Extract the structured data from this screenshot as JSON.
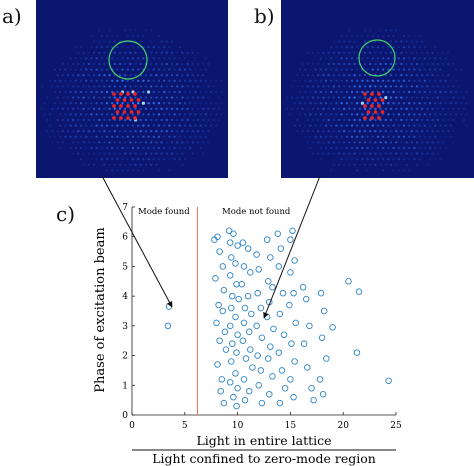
{
  "panels": {
    "a": {
      "label": "a)"
    },
    "b": {
      "label": "b)"
    },
    "c": {
      "label": "c)"
    }
  },
  "colors": {
    "lattice_background": "#0a1670",
    "lattice_spot": "#3d7bff",
    "bright_spot": "#9fe8ff",
    "zero_mode_region": "#e0262b",
    "highlight_circle": "#44d36a",
    "threshold_line": "#e8784a",
    "marker": "#2f86c7"
  },
  "chart_data": {
    "type": "scatter",
    "xlabel_numerator": "Light in entire lattice",
    "xlabel_denominator": "Light confined to zero-mode region",
    "ylabel": "Phase of excitation beam",
    "xlim": [
      0,
      25
    ],
    "ylim": [
      0,
      7
    ],
    "x_ticks": [
      "0",
      "5",
      "10",
      "15",
      "20",
      "25"
    ],
    "y_ticks": [
      "0",
      "1",
      "2",
      "3",
      "4",
      "5",
      "6",
      "7"
    ],
    "threshold_x": 6.2,
    "region_labels": {
      "left": "Mode found",
      "right": "Mode not found"
    },
    "grid": false,
    "points": [
      [
        3.5,
        3.65
      ],
      [
        3.4,
        3.0
      ],
      [
        7.8,
        5.9
      ],
      [
        8.1,
        6.0
      ],
      [
        8.3,
        5.5
      ],
      [
        8.6,
        5.0
      ],
      [
        7.9,
        4.6
      ],
      [
        8.7,
        4.2
      ],
      [
        8.2,
        3.7
      ],
      [
        8.6,
        3.5
      ],
      [
        8.0,
        3.1
      ],
      [
        8.8,
        2.8
      ],
      [
        8.3,
        2.5
      ],
      [
        8.9,
        2.2
      ],
      [
        8.1,
        1.7
      ],
      [
        8.5,
        1.2
      ],
      [
        8.4,
        0.8
      ],
      [
        8.7,
        0.4
      ],
      [
        9.2,
        6.2
      ],
      [
        9.6,
        6.1
      ],
      [
        9.3,
        5.8
      ],
      [
        10.0,
        5.7
      ],
      [
        9.4,
        5.3
      ],
      [
        9.8,
        5.1
      ],
      [
        9.3,
        4.7
      ],
      [
        9.9,
        4.4
      ],
      [
        9.5,
        4.0
      ],
      [
        10.1,
        3.9
      ],
      [
        9.4,
        3.6
      ],
      [
        9.8,
        3.3
      ],
      [
        9.3,
        3.0
      ],
      [
        10.0,
        2.7
      ],
      [
        9.5,
        2.4
      ],
      [
        9.9,
        2.1
      ],
      [
        9.4,
        1.8
      ],
      [
        9.8,
        1.4
      ],
      [
        9.3,
        1.1
      ],
      [
        10.0,
        0.9
      ],
      [
        9.6,
        0.6
      ],
      [
        9.9,
        0.3
      ],
      [
        10.5,
        5.8
      ],
      [
        11.0,
        5.6
      ],
      [
        10.6,
        5.0
      ],
      [
        11.2,
        4.8
      ],
      [
        10.4,
        4.4
      ],
      [
        11.0,
        4.0
      ],
      [
        10.7,
        3.6
      ],
      [
        11.3,
        3.4
      ],
      [
        10.6,
        3.1
      ],
      [
        11.1,
        2.8
      ],
      [
        10.5,
        2.5
      ],
      [
        11.2,
        2.2
      ],
      [
        10.8,
        1.9
      ],
      [
        11.4,
        1.6
      ],
      [
        10.6,
        1.2
      ],
      [
        11.1,
        0.8
      ],
      [
        10.7,
        0.5
      ],
      [
        11.8,
        5.4
      ],
      [
        12.0,
        4.9
      ],
      [
        11.9,
        4.1
      ],
      [
        12.2,
        3.6
      ],
      [
        11.8,
        3.0
      ],
      [
        12.3,
        2.6
      ],
      [
        11.9,
        2.0
      ],
      [
        12.2,
        1.5
      ],
      [
        12.0,
        1.0
      ],
      [
        12.3,
        0.4
      ],
      [
        12.8,
        5.9
      ],
      [
        13.1,
        5.3
      ],
      [
        12.9,
        4.5
      ],
      [
        13.3,
        4.3
      ],
      [
        13.0,
        3.8
      ],
      [
        12.8,
        3.3
      ],
      [
        13.4,
        2.9
      ],
      [
        13.1,
        2.3
      ],
      [
        12.9,
        1.9
      ],
      [
        13.3,
        1.3
      ],
      [
        13.0,
        0.7
      ],
      [
        13.8,
        6.1
      ],
      [
        14.1,
        5.6
      ],
      [
        13.9,
        5.0
      ],
      [
        14.3,
        4.1
      ],
      [
        14.0,
        3.4
      ],
      [
        14.4,
        2.7
      ],
      [
        13.9,
        2.1
      ],
      [
        14.2,
        1.5
      ],
      [
        14.5,
        0.9
      ],
      [
        14.0,
        0.4
      ],
      [
        15.0,
        5.9
      ],
      [
        15.2,
        6.2
      ],
      [
        15.4,
        5.2
      ],
      [
        15.0,
        4.8
      ],
      [
        15.3,
        4.1
      ],
      [
        14.9,
        3.7
      ],
      [
        15.5,
        3.1
      ],
      [
        15.1,
        2.4
      ],
      [
        15.4,
        1.8
      ],
      [
        15.0,
        1.2
      ],
      [
        15.3,
        0.6
      ],
      [
        16.2,
        4.3
      ],
      [
        16.5,
        3.9
      ],
      [
        16.8,
        3.0
      ],
      [
        16.3,
        2.4
      ],
      [
        16.6,
        1.6
      ],
      [
        17.0,
        0.9
      ],
      [
        17.2,
        0.5
      ],
      [
        17.9,
        4.1
      ],
      [
        18.2,
        3.5
      ],
      [
        18.0,
        2.6
      ],
      [
        18.4,
        1.9
      ],
      [
        17.8,
        1.2
      ],
      [
        18.1,
        0.7
      ],
      [
        19.0,
        2.95
      ],
      [
        20.5,
        4.5
      ],
      [
        21.5,
        4.15
      ],
      [
        21.3,
        2.1
      ],
      [
        24.3,
        1.15
      ]
    ]
  }
}
